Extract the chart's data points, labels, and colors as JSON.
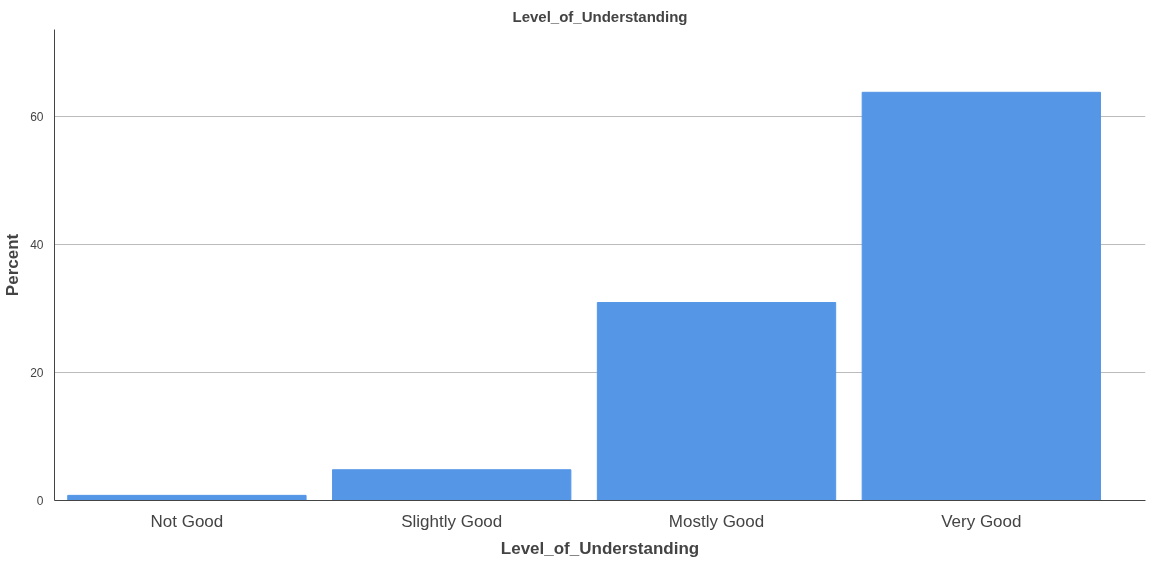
{
  "chart_data": {
    "type": "bar",
    "title": "Level_of_Understanding",
    "xlabel": "Level_of_Understanding",
    "ylabel": "Percent",
    "categories": [
      "Not Good",
      "Slightly Good",
      "Mostly Good",
      "Very Good"
    ],
    "values": [
      0.8,
      4.8,
      30.9,
      63.7
    ],
    "color": "#5596e6",
    "ylim": [
      0,
      73.5
    ],
    "yticks": [
      0,
      20,
      40,
      60
    ],
    "grid": "y"
  }
}
